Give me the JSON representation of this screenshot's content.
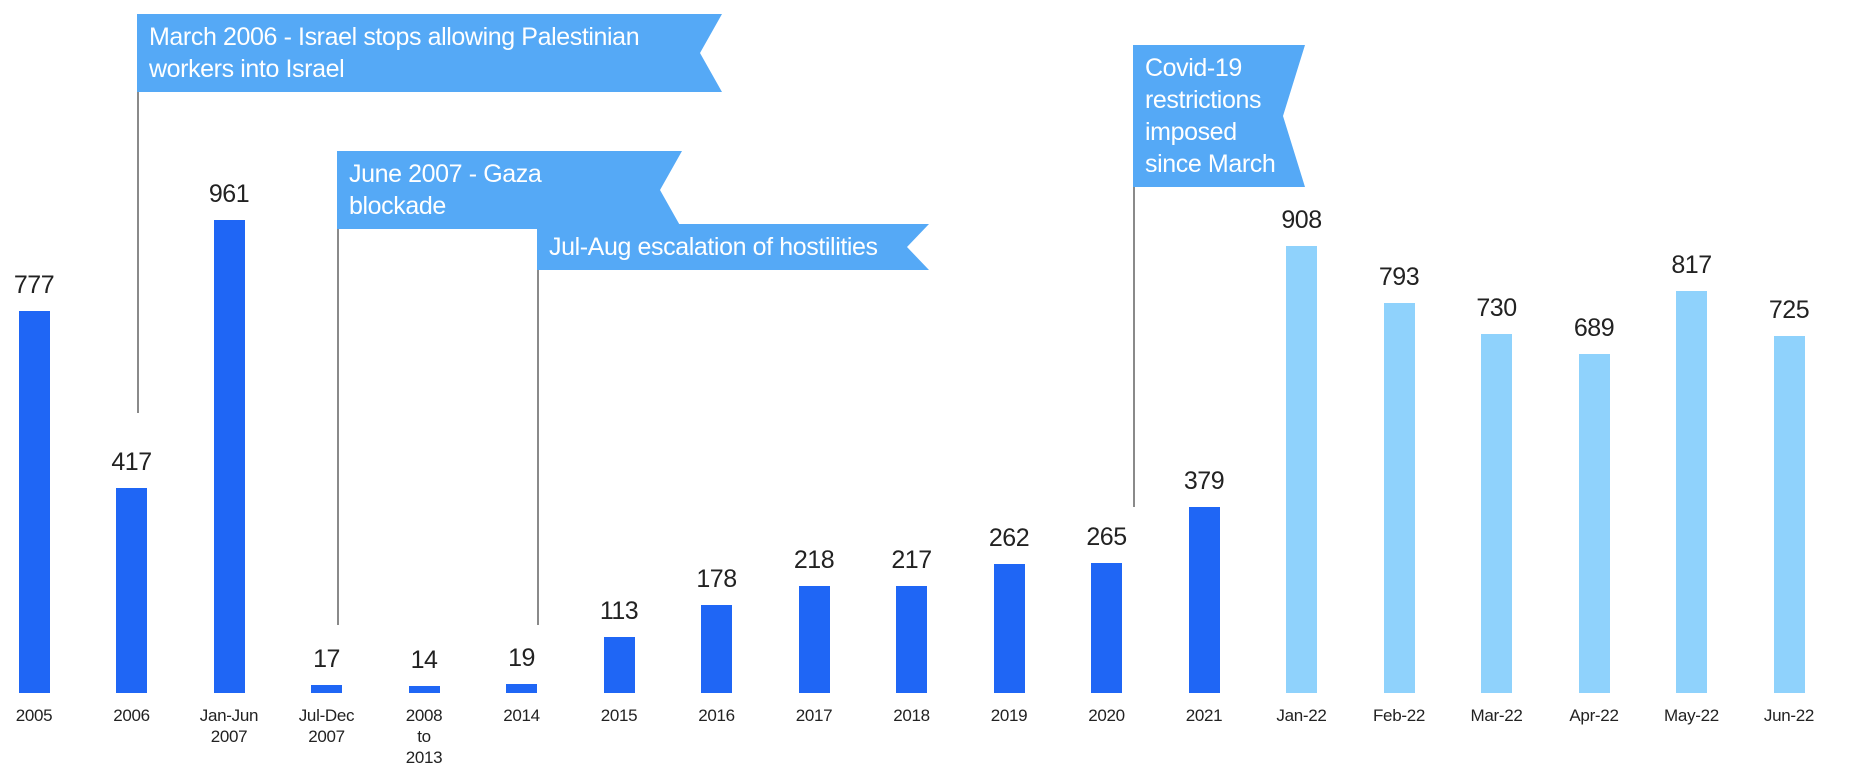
{
  "chart_data": {
    "type": "bar",
    "categories": [
      "2005",
      "2006",
      "Jan-Jun 2007",
      "Jul-Dec 2007",
      "2008 to 2013",
      "2014",
      "2015",
      "2016",
      "2017",
      "2018",
      "2019",
      "2020",
      "2021",
      "Jan-22",
      "Feb-22",
      "Mar-22",
      "Apr-22",
      "May-22",
      "Jun-22"
    ],
    "values": [
      777,
      417,
      961,
      17,
      14,
      19,
      113,
      178,
      218,
      217,
      262,
      265,
      379,
      908,
      793,
      730,
      689,
      817,
      725
    ],
    "colors": [
      "#1f66f5",
      "#1f66f5",
      "#1f66f5",
      "#1f66f5",
      "#1f66f5",
      "#1f66f5",
      "#1f66f5",
      "#1f66f5",
      "#1f66f5",
      "#1f66f5",
      "#1f66f5",
      "#1f66f5",
      "#1f66f5",
      "#8fd2fc",
      "#8fd2fc",
      "#8fd2fc",
      "#8fd2fc",
      "#8fd2fc",
      "#8fd2fc"
    ],
    "annotations": [
      {
        "text": "March 2006 - Israel stops allowing Palestinian workers into Israel"
      },
      {
        "text": "June 2007 - Gaza blockade"
      },
      {
        "text": "Jul-Aug escalation of hostilities"
      },
      {
        "text": "Covid-19 restrictions imposed since March"
      }
    ]
  }
}
